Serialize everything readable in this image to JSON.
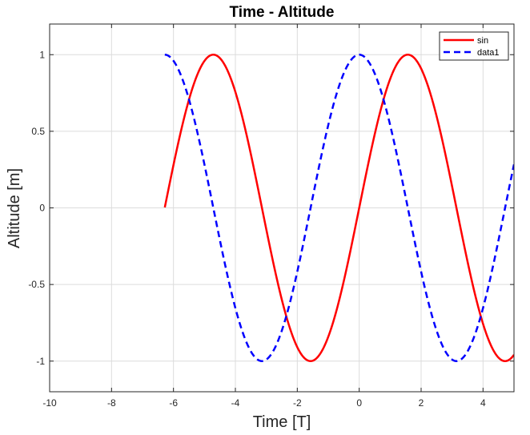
{
  "chart_data": {
    "type": "line",
    "title": "Time - Altitude",
    "xlabel": "Time [T]",
    "ylabel": "Altitude [m]",
    "xlim": [
      -10,
      5
    ],
    "ylim": [
      -1.2,
      1.2
    ],
    "xticks": [
      -10,
      -8,
      -6,
      -4,
      -2,
      0,
      2,
      4
    ],
    "xtick_labels": [
      "-10",
      "-8",
      "-6",
      "-4",
      "-2",
      "0",
      "2",
      "4"
    ],
    "yticks": [
      -1,
      -0.5,
      0,
      0.5,
      1
    ],
    "ytick_labels": [
      "-1",
      "-0.5",
      "0",
      "0.5",
      "1"
    ],
    "grid": true,
    "legend_position": "top-right",
    "series": [
      {
        "name": "sin",
        "color": "#ff0000",
        "line_style": "solid",
        "x": [
          -6.28,
          -5.5,
          -5.0,
          -4.71,
          -4.0,
          -3.14,
          -2.5,
          -2.0,
          -1.57,
          -1.0,
          -0.5,
          0,
          0.5,
          1.0,
          1.57,
          2.0,
          2.5,
          3.14,
          4.0,
          4.71,
          5.0
        ],
        "y": [
          0,
          0.71,
          0.96,
          1,
          0.76,
          0,
          -0.6,
          -0.91,
          -1,
          -0.84,
          -0.48,
          0,
          0.48,
          0.84,
          1,
          0.91,
          0.6,
          0,
          -0.76,
          -1,
          -0.96
        ]
      },
      {
        "name": "data1",
        "color": "#0000ff",
        "line_style": "dashed",
        "x": [
          -6.28,
          -5.5,
          -4.71,
          -4.0,
          -3.14,
          -2.5,
          -2.0,
          -1.57,
          -1.0,
          -0.5,
          0,
          0.5,
          1.0,
          1.57,
          2.0,
          2.5,
          3.14,
          4.0,
          4.71,
          5.0
        ],
        "y": [
          1,
          0.71,
          0,
          -0.65,
          -1,
          -0.8,
          -0.42,
          0,
          0.54,
          0.88,
          1,
          0.88,
          0.54,
          0,
          -0.42,
          -0.8,
          -1,
          -0.65,
          0,
          0.28
        ]
      }
    ]
  }
}
